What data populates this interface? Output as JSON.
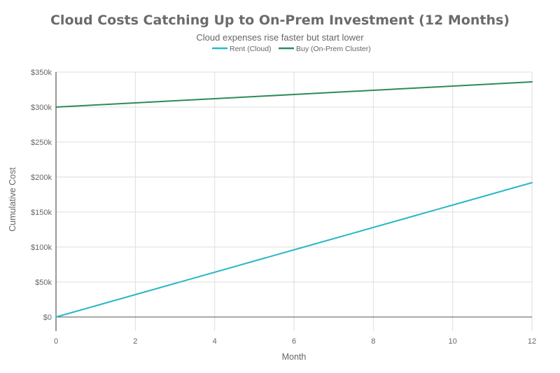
{
  "chart_data": {
    "type": "line",
    "title": "Cloud Costs Catching Up to On-Prem Investment (12 Months)",
    "subtitle": "Cloud expenses rise faster but start lower",
    "xlabel": "Month",
    "ylabel": "Cumulative Cost",
    "xlim": [
      0,
      12
    ],
    "ylim": [
      -20000,
      350000
    ],
    "x_ticks": [
      0,
      2,
      4,
      6,
      8,
      10,
      12
    ],
    "x_tick_labels": [
      "0",
      "2",
      "4",
      "6",
      "8",
      "10",
      "12"
    ],
    "y_ticks": [
      0,
      50000,
      100000,
      150000,
      200000,
      250000,
      300000,
      350000
    ],
    "y_tick_labels": [
      "$0",
      "$50k",
      "$100k",
      "$150k",
      "$200k",
      "$250k",
      "$300k",
      "$350k"
    ],
    "grid": true,
    "legend_position": "top-center",
    "series": [
      {
        "name": "Rent (Cloud)",
        "color": "#2bb7c7",
        "x": [
          0,
          1,
          2,
          3,
          4,
          5,
          6,
          7,
          8,
          9,
          10,
          11,
          12
        ],
        "values": [
          0,
          16000,
          32000,
          48000,
          64000,
          80000,
          96000,
          112000,
          128000,
          144000,
          160000,
          176000,
          192000
        ]
      },
      {
        "name": "Buy (On-Prem Cluster)",
        "color": "#2e8b57",
        "x": [
          0,
          1,
          2,
          3,
          4,
          5,
          6,
          7,
          8,
          9,
          10,
          11,
          12
        ],
        "values": [
          300000,
          303000,
          306000,
          309000,
          312000,
          315000,
          318000,
          321000,
          324000,
          327000,
          330000,
          333000,
          336000
        ]
      }
    ]
  }
}
